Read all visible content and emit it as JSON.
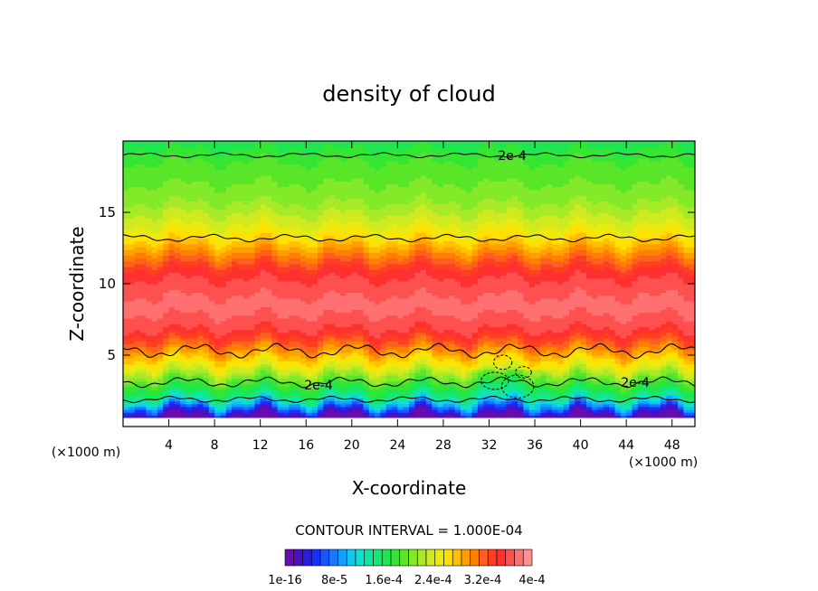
{
  "chart_data": {
    "type": "heatmap",
    "title": "density of cloud",
    "xlabel": "X-coordinate",
    "ylabel": "Z-coordinate",
    "x_unit_left": "(×1000 m)",
    "x_unit_right": "(×1000 m)",
    "xlim": [
      0,
      50
    ],
    "ylim": [
      0,
      20
    ],
    "x_ticks": [
      4,
      8,
      12,
      16,
      20,
      24,
      28,
      32,
      36,
      40,
      44,
      48
    ],
    "y_ticks": [
      5,
      10,
      15
    ],
    "contour_interval_text": "CONTOUR INTERVAL = 1.000E-04",
    "contour_labels": [
      "2e-4",
      "2e-4",
      "2e-4"
    ],
    "colorbar_labels": [
      "1e-16",
      "8e-5",
      "1.6e-4",
      "2.4e-4",
      "3.2e-4",
      "4e-4"
    ],
    "colorbar_range": [
      0,
      0.00044
    ],
    "colors": [
      "#6a0dad",
      "#4b10c4",
      "#2a1ee0",
      "#1530ff",
      "#1a55ff",
      "#1a78ff",
      "#12a0ff",
      "#10c8f0",
      "#10e0d0",
      "#10e6a0",
      "#14e878",
      "#1ee650",
      "#34e632",
      "#5ae628",
      "#82ea28",
      "#a8ea28",
      "#d0ea20",
      "#eaea10",
      "#ffe000",
      "#ffc000",
      "#ffa000",
      "#ff8000",
      "#ff6020",
      "#ff4020",
      "#ff3030",
      "#ff5050",
      "#ff7070",
      "#ff9090"
    ],
    "vertical_profile": {
      "z": [
        0.5,
        1.0,
        1.5,
        2.0,
        2.5,
        3.0,
        3.5,
        4.0,
        5.0,
        6.0,
        7.0,
        8.0,
        9.0,
        10.0,
        11.0,
        12.0,
        13.0,
        14.0,
        15.0,
        16.0,
        17.0,
        18.0,
        19.0,
        19.8
      ],
      "density": [
        0.0,
        3e-05,
        0.0001,
        0.00015,
        0.00018,
        0.0002,
        0.00023,
        0.00026,
        0.00031,
        0.00036,
        0.0004,
        0.00041,
        0.00041,
        0.0004,
        0.00038,
        0.00034,
        0.0003,
        0.00027,
        0.00025,
        0.00023,
        0.00022,
        0.00021,
        0.0002,
        0.00018
      ]
    }
  }
}
